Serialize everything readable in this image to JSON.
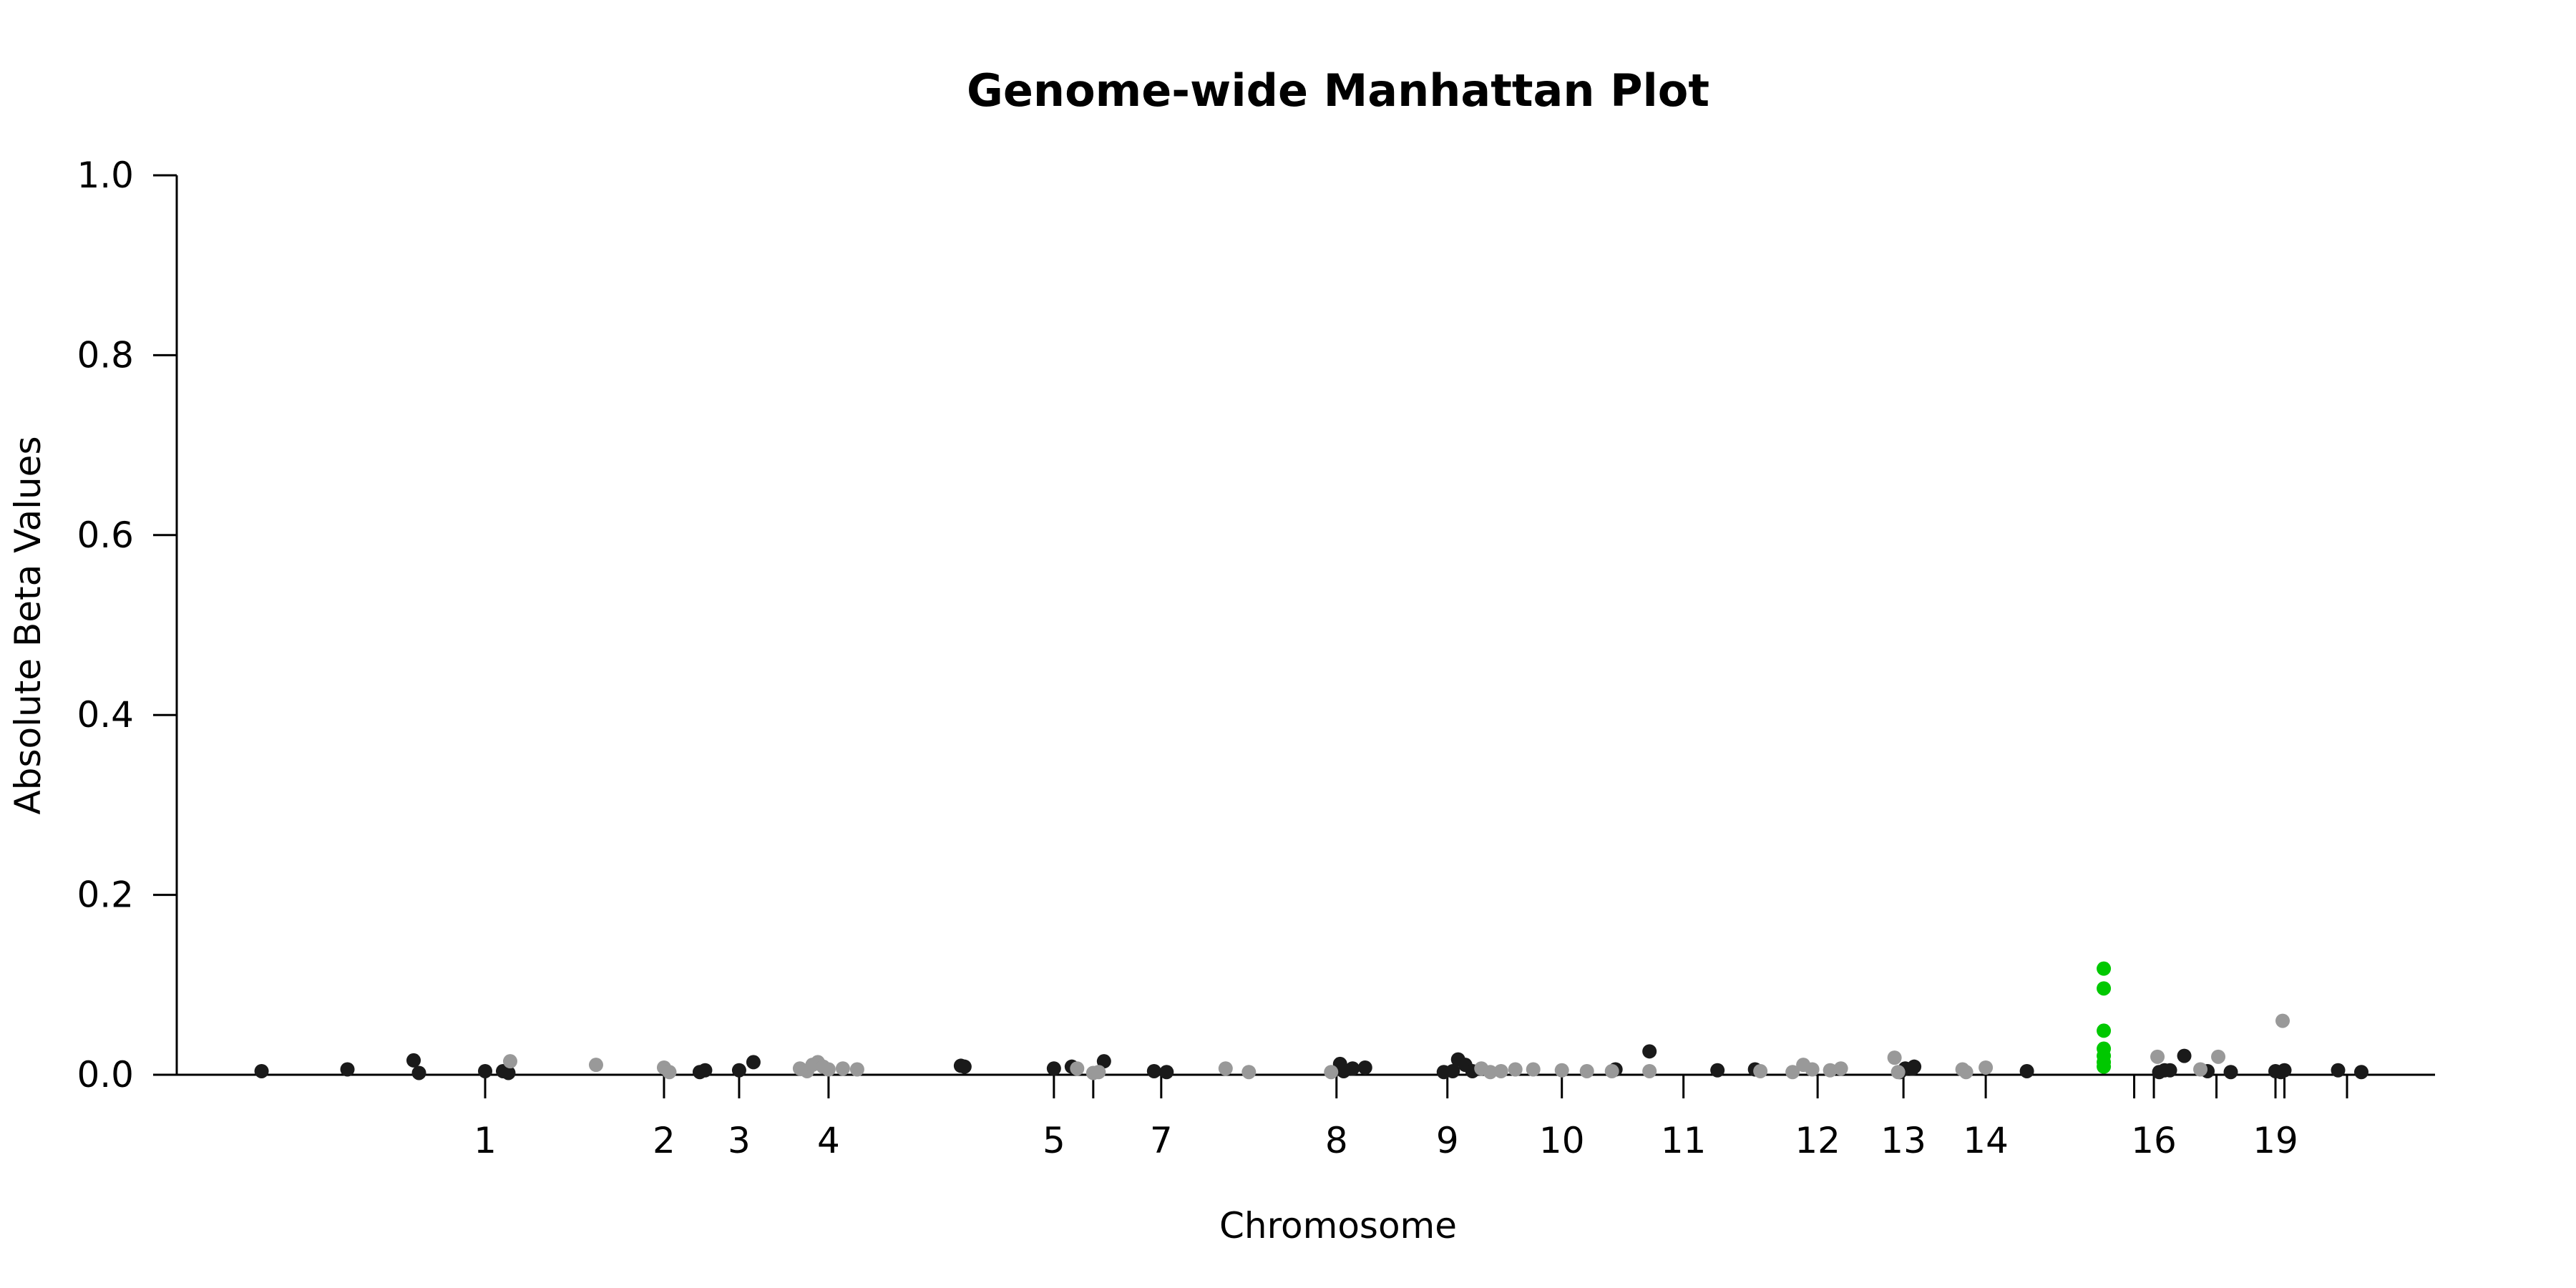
{
  "chart_data": {
    "type": "scatter",
    "title": "Genome-wide Manhattan Plot",
    "xlabel": "Chromosome",
    "ylabel": "Absolute Beta Values",
    "ylim": [
      0,
      1
    ],
    "yticks": [
      "0.0",
      "0.2",
      "0.4",
      "0.6",
      "0.8",
      "1.0"
    ],
    "xlim": [
      -8,
      125.5
    ],
    "xticks": [
      {
        "pos": 8,
        "label": "1"
      },
      {
        "pos": 18,
        "label": "2"
      },
      {
        "pos": 22.2,
        "label": "3"
      },
      {
        "pos": 27.2,
        "label": "4"
      },
      {
        "pos": 39.8,
        "label": "5"
      },
      {
        "pos": 42,
        "label": ""
      },
      {
        "pos": 45.8,
        "label": "7"
      },
      {
        "pos": 55.6,
        "label": "8"
      },
      {
        "pos": 61.8,
        "label": "9"
      },
      {
        "pos": 68.2,
        "label": "10"
      },
      {
        "pos": 75,
        "label": "11"
      },
      {
        "pos": 82.5,
        "label": "12"
      },
      {
        "pos": 87.3,
        "label": "13"
      },
      {
        "pos": 91.9,
        "label": "14"
      },
      {
        "pos": 100.2,
        "label": ""
      },
      {
        "pos": 101.3,
        "label": "16"
      },
      {
        "pos": 104.8,
        "label": ""
      },
      {
        "pos": 108.1,
        "label": "19"
      },
      {
        "pos": 108.6,
        "label": ""
      },
      {
        "pos": 112.1,
        "label": ""
      }
    ],
    "grid": false,
    "colors": {
      "dark": "#1a1a1a",
      "light": "#999999",
      "highlight": "#00c800"
    },
    "series": [
      {
        "color": "#1a1a1a",
        "x": [
          -4.5,
          0.3,
          4.0,
          4.3,
          8.0,
          9.0,
          9.3,
          20.0,
          20.3,
          22.2,
          23.0,
          34.6,
          34.8,
          39.8,
          40.8,
          42.6,
          45.4,
          46.1,
          55.8,
          56.0,
          56.5,
          57.2,
          61.6,
          62.1,
          62.4,
          62.8,
          63.2,
          71.2,
          73.1,
          76.9,
          79.0,
          87.1,
          87.4,
          87.8,
          87.9,
          94.2,
          101.6,
          101.9,
          102.2,
          103.0,
          104.3,
          105.6,
          108.1,
          108.4,
          108.6,
          111.6,
          112.9
        ],
        "y": [
          0.004,
          0.006,
          0.016,
          0.002,
          0.004,
          0.004,
          0.002,
          0.003,
          0.005,
          0.005,
          0.014,
          0.01,
          0.009,
          0.007,
          0.009,
          0.015,
          0.004,
          0.003,
          0.012,
          0.004,
          0.007,
          0.008,
          0.003,
          0.004,
          0.017,
          0.011,
          0.004,
          0.006,
          0.026,
          0.005,
          0.006,
          0.003,
          0.007,
          0.007,
          0.009,
          0.004,
          0.003,
          0.005,
          0.005,
          0.021,
          0.004,
          0.003,
          0.004,
          0.003,
          0.005,
          0.005,
          0.003
        ]
      },
      {
        "color": "#999999",
        "x": [
          9.4,
          14.2,
          18.0,
          18.3,
          25.6,
          26.0,
          26.3,
          26.6,
          26.9,
          27.2,
          28.0,
          28.8,
          41.1,
          42.0,
          42.3,
          49.4,
          50.7,
          55.3,
          63.7,
          64.2,
          64.8,
          65.6,
          66.6,
          68.2,
          69.6,
          71.0,
          73.1,
          79.3,
          81.1,
          81.7,
          82.2,
          83.2,
          83.8,
          86.8,
          87.0,
          90.6,
          90.8,
          91.9,
          101.5,
          103.9,
          104.9,
          108.5
        ],
        "y": [
          0.015,
          0.011,
          0.008,
          0.003,
          0.007,
          0.004,
          0.011,
          0.014,
          0.009,
          0.006,
          0.007,
          0.006,
          0.007,
          0.002,
          0.003,
          0.007,
          0.003,
          0.003,
          0.007,
          0.003,
          0.004,
          0.006,
          0.006,
          0.005,
          0.004,
          0.004,
          0.004,
          0.004,
          0.003,
          0.011,
          0.006,
          0.005,
          0.007,
          0.019,
          0.003,
          0.006,
          0.003,
          0.008,
          0.02,
          0.006,
          0.02,
          0.06
        ]
      },
      {
        "color": "#00c800",
        "x": [
          98.5,
          98.5,
          98.5,
          98.5,
          98.5,
          98.5,
          98.5
        ],
        "y": [
          0.118,
          0.096,
          0.049,
          0.029,
          0.021,
          0.014,
          0.009
        ]
      }
    ]
  }
}
